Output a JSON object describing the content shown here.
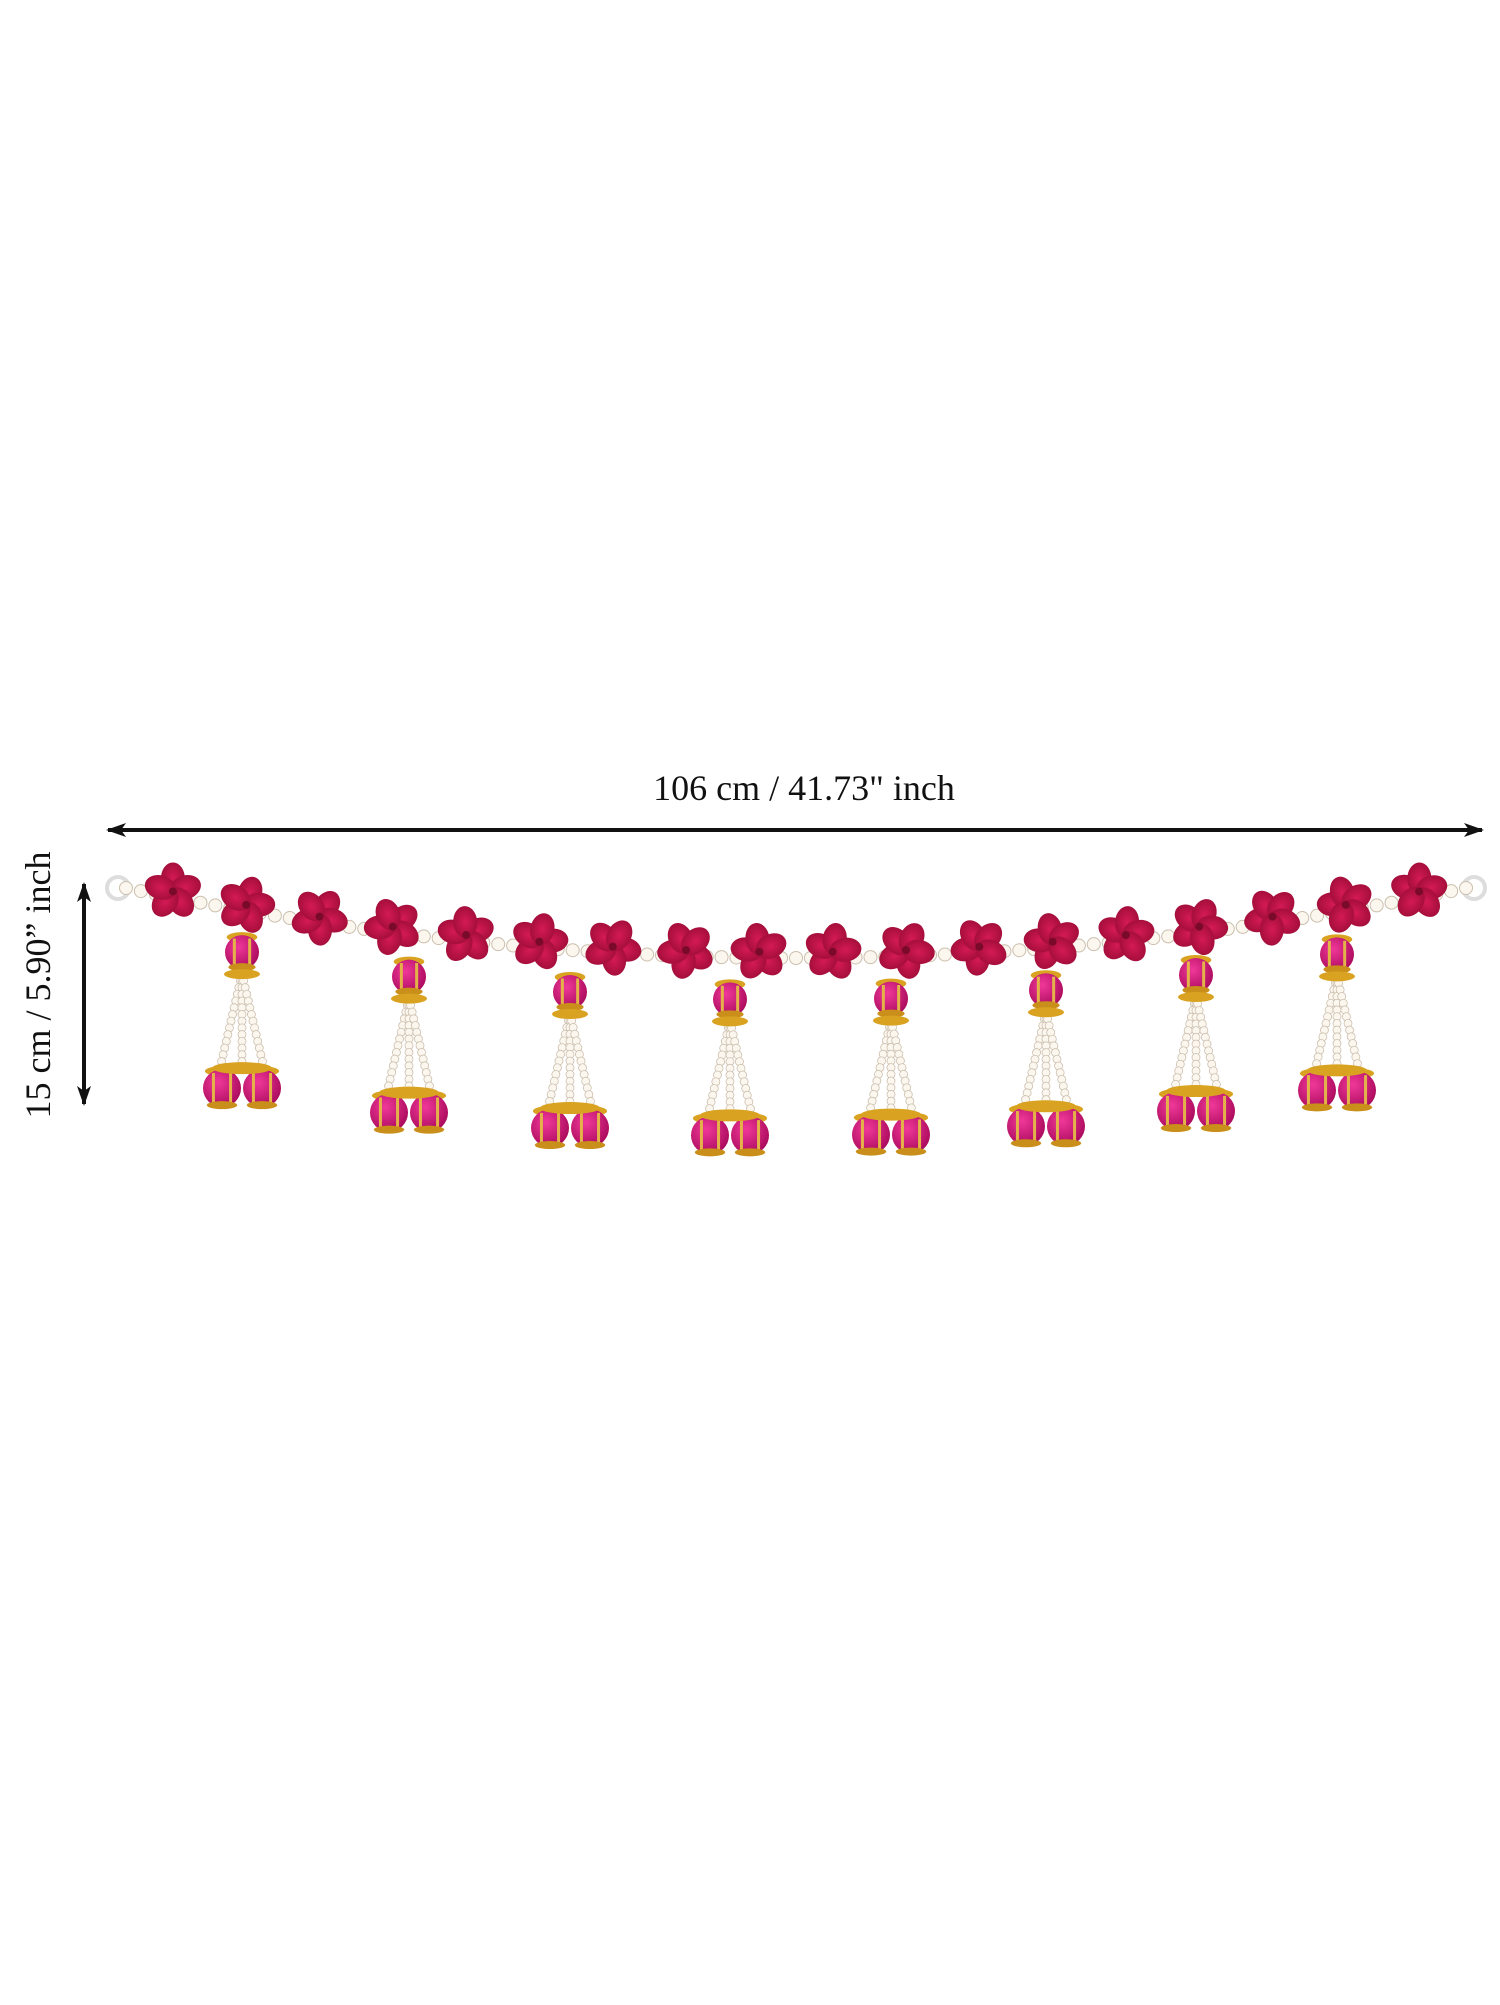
{
  "dimensions": {
    "width": "106 cm / 41.73\" inch",
    "height": "15 cm / 5.90” inch"
  }
}
